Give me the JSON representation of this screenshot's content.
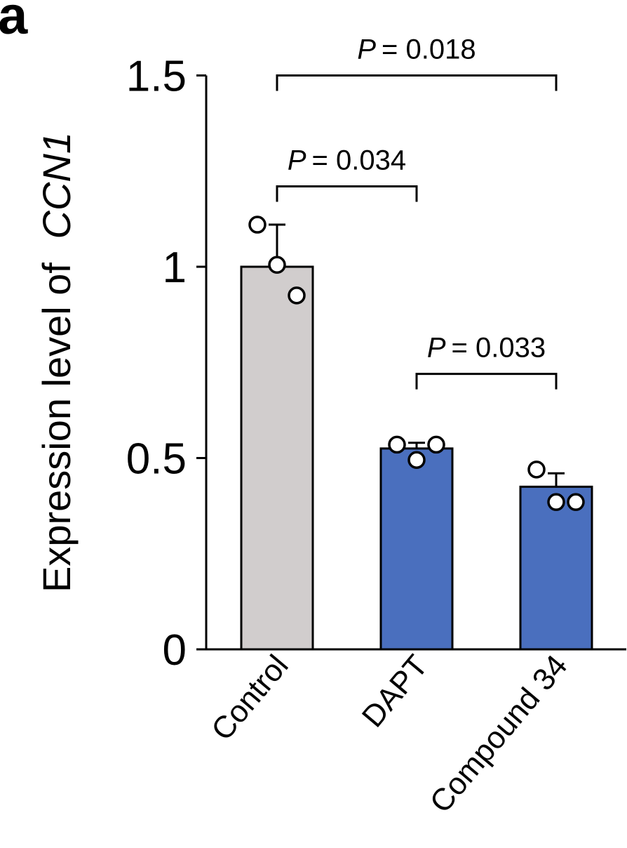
{
  "panel_label": "a",
  "chart_data": {
    "type": "bar",
    "title": "",
    "xlabel": "",
    "ylabel_prefix": "Expression level of",
    "ylabel_gene": "CCN1",
    "ylim": [
      0,
      1.5
    ],
    "yticks": [
      0,
      0.5,
      1,
      1.5
    ],
    "ytick_labels": [
      "0",
      "0.5",
      "1",
      "1.5"
    ],
    "categories": [
      "Control",
      "DAPT",
      "Compound 34"
    ],
    "values": [
      1.0,
      0.525,
      0.425
    ],
    "errors": [
      0.11,
      0.015,
      0.035
    ],
    "bar_colors": [
      "#d1cdcd",
      "#4a6fbe",
      "#4a6fbe"
    ],
    "points": [
      [
        1.11,
        1.005,
        0.925
      ],
      [
        0.535,
        0.495,
        0.535
      ],
      [
        0.47,
        0.385,
        0.385
      ]
    ],
    "point_offsets": [
      [
        -0.28,
        0.0,
        0.28
      ],
      [
        -0.28,
        0.0,
        0.28
      ],
      [
        -0.28,
        0.0,
        0.28
      ]
    ],
    "comparisons": [
      {
        "from": 0,
        "to": 1,
        "y": 1.21,
        "p_symbol": "P",
        "p_text": "= 0.034"
      },
      {
        "from": 1,
        "to": 2,
        "y": 0.72,
        "p_symbol": "P",
        "p_text": "= 0.033"
      },
      {
        "from": 0,
        "to": 2,
        "y": 1.5,
        "p_symbol": "P",
        "p_text": "= 0.018"
      }
    ]
  }
}
